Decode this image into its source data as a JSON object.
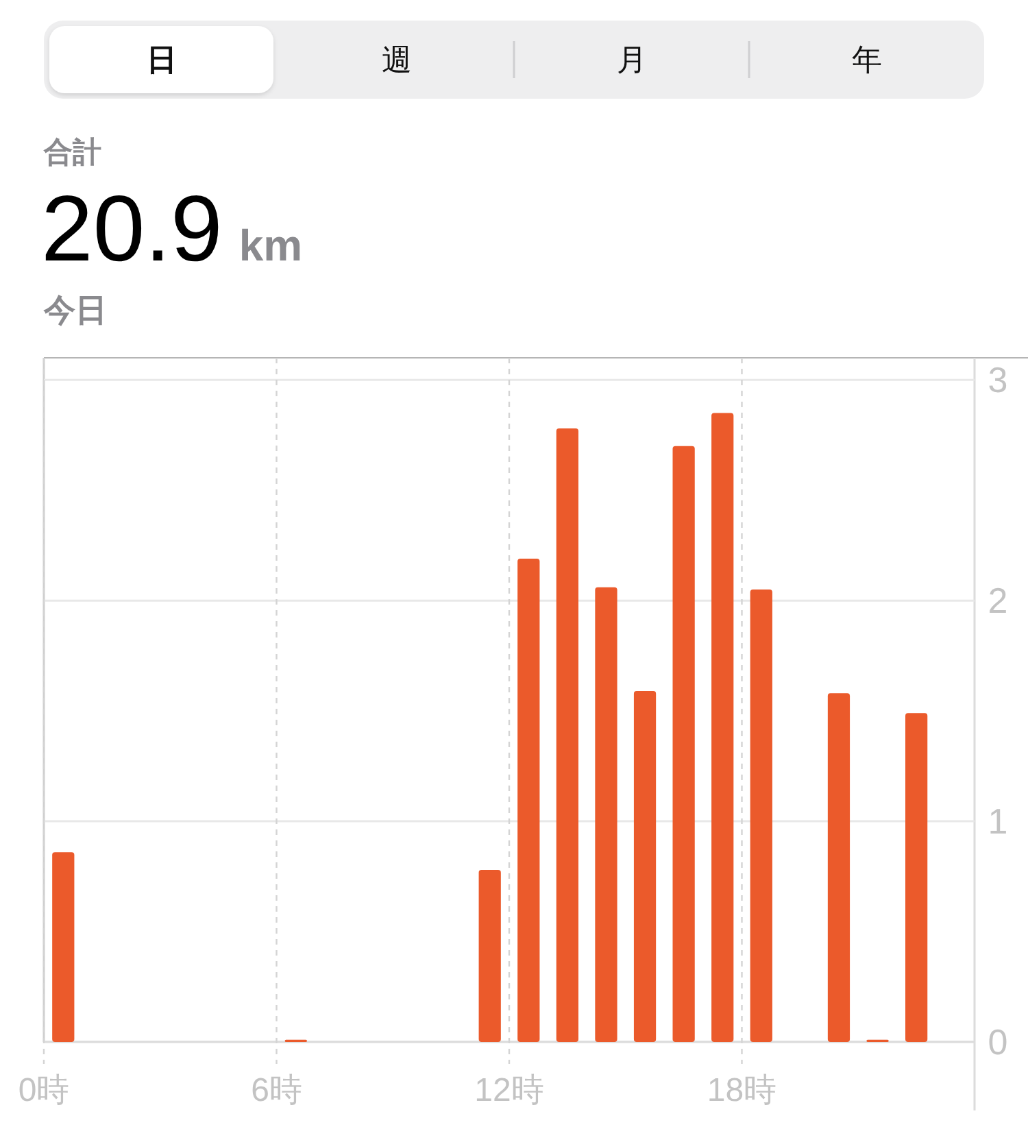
{
  "chart_data": [
    {
      "type": "other",
      "annotations": [
        "日",
        "週",
        "月",
        "年"
      ]
    },
    {
      "type": "bar",
      "title": "20.9 km",
      "subtitle": "合計",
      "annotations": [
        "今日"
      ],
      "x": [
        0.5,
        6.5,
        11.5,
        12.5,
        13.5,
        14.5,
        15.5,
        16.5,
        17.5,
        18.5,
        20.5,
        21.5,
        22.5
      ],
      "values": [
        0.86,
        0.01,
        0.78,
        2.19,
        2.78,
        2.06,
        1.59,
        2.7,
        2.85,
        2.05,
        1.58,
        0.01,
        1.49
      ],
      "color": "#eb5a2b",
      "xlim": [
        0,
        24
      ],
      "xticks": [
        {
          "value": 0,
          "label": "0時"
        },
        {
          "value": 6,
          "label": "6時"
        },
        {
          "value": 12,
          "label": "12時"
        },
        {
          "value": 18,
          "label": "18時"
        }
      ],
      "ylim": [
        0,
        3.1
      ],
      "yticks": [
        0,
        1,
        2,
        3
      ],
      "grid": true
    }
  ]
}
